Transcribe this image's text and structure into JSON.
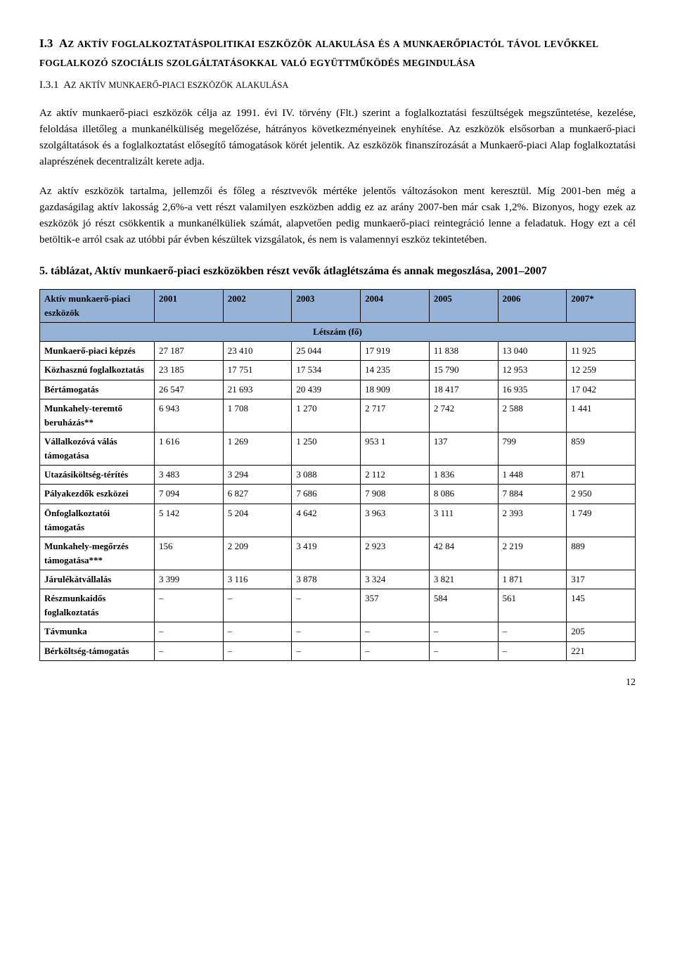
{
  "heading1_prefix": "I.3",
  "heading1_text_a": "Az aktív foglalkoztatáspolitikai eszközök alakulása és a munkaerőpiactól távol levőkkel foglalkozó szociális szolgáltatásokkal való együttműködés megindulása",
  "heading2_prefix": "I.3.1",
  "heading2_text": "Az aktív munkaerő-piaci eszközök alakulása",
  "para1": "Az aktív munkaerő-piaci eszközök célja az 1991. évi IV. törvény (Flt.) szerint a foglalkoztatási feszültségek megszűntetése, kezelése, feloldása illetőleg a munkanélküliség megelőzése, hátrányos következményeinek enyhítése. Az eszközök elsősorban a munkaerő-piaci szolgáltatások és a foglalkoztatást elősegítő támogatások körét jelentik. Az eszközök finanszírozását a Munkaerő-piaci Alap foglalkoztatási alaprészének decentralizált kerete adja.",
  "para2": "Az aktív eszközök tartalma, jellemzői és főleg a résztvevők mértéke jelentős változásokon ment keresztül. Míg 2001-ben még a gazdaságilag aktív lakosság 2,6%-a vett részt valamilyen eszközben addig ez az arány 2007-ben már csak 1,2%. Bizonyos, hogy ezek az eszközök jó részt csökkentik a munkanélküliek számát, alapvetően pedig munkaerő-piaci reintegráció lenne a feladatuk. Hogy ezt a cél betöltik-e arról csak az utóbbi pár évben készültek vizsgálatok, és nem is valamennyi eszköz tekintetében.",
  "table_title": "5. táblázat, Aktív munkaerő-piaci eszközökben részt vevők átlaglétszáma és annak megoszlása, 2001–2007",
  "table": {
    "col_header_first": "Aktív munkaerő-piaci eszközök",
    "years": [
      "2001",
      "2002",
      "2003",
      "2004",
      "2005",
      "2006",
      "2007*"
    ],
    "subheader": "Létszám (fő)",
    "header_bg": "#95b3d7",
    "rows": [
      {
        "label": "Munkaerő-piaci képzés",
        "vals": [
          "27 187",
          "23 410",
          "25 044",
          "17 919",
          "11 838",
          "13 040",
          "11 925"
        ]
      },
      {
        "label": "Közhasznú foglalkoztatás",
        "vals": [
          "23 185",
          "17 751",
          "17 534",
          "14 235",
          "15 790",
          "12 953",
          "12 259"
        ]
      },
      {
        "label": "Bértámogatás",
        "vals": [
          "26 547",
          "21 693",
          "20 439",
          "18 909",
          "18 417",
          "16 935",
          "17 042"
        ]
      },
      {
        "label": "Munkahely-teremtő beruházás**",
        "vals": [
          " 6 943",
          "1 708",
          "1 270",
          "2 717",
          "2 742",
          "2 588",
          "1 441"
        ]
      },
      {
        "label": "Vállalkozóvá válás támogatása",
        "vals": [
          "1 616",
          "1 269",
          "1 250",
          "953 1",
          "137",
          "799",
          "859"
        ]
      },
      {
        "label": "Utazásiköltség-térítés",
        "vals": [
          "3 483",
          "3 294",
          "3 088",
          "2 112",
          "1 836",
          "1 448",
          "871"
        ]
      },
      {
        "label": "Pályakezdők eszközei",
        "vals": [
          "7 094",
          "6 827",
          "7 686",
          "7 908",
          "8 086",
          "7 884",
          "2 950"
        ]
      },
      {
        "label": "Önfoglalkoztatói támogatás",
        "vals": [
          "5 142",
          "5 204",
          "4 642",
          "3 963",
          "3 111",
          "2 393",
          "1 749"
        ]
      },
      {
        "label": "Munkahely-megőrzés támogatása***",
        "vals": [
          "156",
          "2 209",
          "3 419",
          "2 923",
          "42 84",
          "2 219",
          "889"
        ]
      },
      {
        "label": "Járulékátvállalás",
        "vals": [
          "3 399",
          "3 116",
          "3 878",
          "3 324",
          "3 821",
          "1 871",
          "317"
        ]
      },
      {
        "label": "Részmunkaidős foglalkoztatás",
        "vals": [
          "–",
          "–",
          "–",
          "357",
          "584",
          "561",
          "145"
        ]
      },
      {
        "label": "Távmunka",
        "vals": [
          "–",
          "–",
          "–",
          "–",
          "–",
          "–",
          "205"
        ]
      },
      {
        "label": "Bérköltség-támogatás",
        "vals": [
          "–",
          "–",
          "–",
          "–",
          "–",
          "–",
          "221"
        ]
      }
    ]
  },
  "page_number": "12"
}
